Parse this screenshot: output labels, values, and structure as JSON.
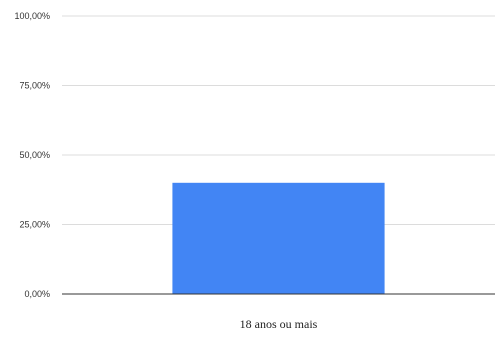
{
  "chart_data": {
    "type": "bar",
    "categories": [
      "18 anos ou mais"
    ],
    "series": [
      {
        "values": [
          0.4
        ]
      }
    ],
    "ylim": [
      0,
      1
    ],
    "yticks": [
      0,
      0.25,
      0.5,
      0.75,
      1
    ],
    "ytick_labels": [
      "0,00%",
      "25,00%",
      "50,00%",
      "75,00%",
      "100,00%"
    ],
    "grid": true,
    "bar_color": "#4285f4",
    "legend": "none"
  }
}
